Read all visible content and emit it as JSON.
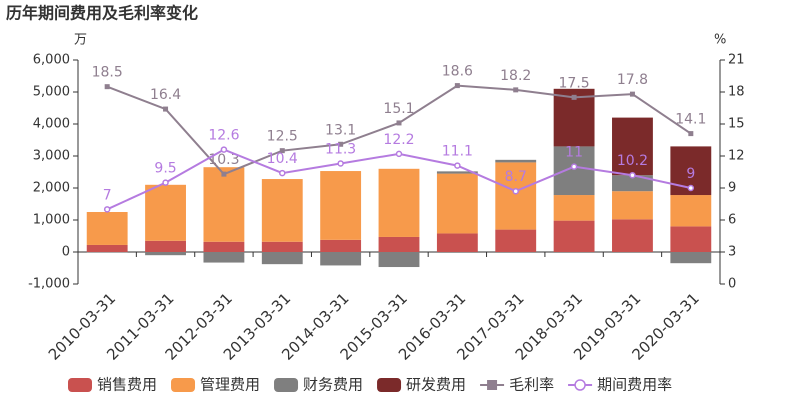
{
  "chart_data": {
    "type": "bar",
    "stacked": true,
    "title": "历年期间费用及毛利率变化",
    "y_label": "万",
    "y2_label": "%",
    "categories": [
      "2010-03-31",
      "2011-03-31",
      "2012-03-31",
      "2013-03-31",
      "2014-03-31",
      "2015-03-31",
      "2016-03-31",
      "2017-03-31",
      "2018-03-31",
      "2019-03-31",
      "2020-03-31"
    ],
    "ylim": [
      -1000,
      6000
    ],
    "yticks": [
      {
        "value": -1000,
        "label": "-1,000"
      },
      0,
      {
        "value": 1000,
        "label": "1,000"
      },
      {
        "value": 2000,
        "label": "2,000"
      },
      {
        "value": 3000,
        "label": "3,000"
      },
      {
        "value": 4000,
        "label": "4,000"
      },
      {
        "value": 5000,
        "label": "5,000"
      },
      {
        "value": 6000,
        "label": "6,000"
      }
    ],
    "y2lim": [
      0,
      21
    ],
    "y2ticks": [
      0,
      3,
      6,
      9,
      12,
      15,
      18,
      21
    ],
    "grid": false,
    "legend": "bottom",
    "series": [
      {
        "name": "销售费用",
        "color": "#c9514f",
        "values": [
          220,
          350,
          320,
          320,
          380,
          470,
          580,
          700,
          980,
          1020,
          800
        ]
      },
      {
        "name": "管理费用",
        "color": "#f79a4b",
        "values": [
          1030,
          1750,
          2330,
          1960,
          2150,
          2130,
          1870,
          2100,
          800,
          880,
          980
        ]
      },
      {
        "name": "财务费用",
        "color": "#7f7f7f",
        "values": [
          -20,
          -100,
          -330,
          -380,
          -420,
          -470,
          70,
          80,
          1520,
          500,
          -350
        ]
      },
      {
        "name": "研发费用",
        "color": "#7b2a2a",
        "values": [
          0,
          0,
          0,
          0,
          0,
          0,
          0,
          0,
          1800,
          1800,
          1520
        ]
      },
      {
        "name": "毛利率",
        "type": "line",
        "axis": "y2",
        "marker": "square",
        "color": "#8f7f8f",
        "values": [
          18.5,
          16.4,
          10.3,
          12.5,
          13.1,
          15.1,
          18.6,
          18.2,
          17.5,
          17.8,
          14.1
        ]
      },
      {
        "name": "期间费用率",
        "type": "line",
        "axis": "y2",
        "marker": "circle",
        "color": "#b57be0",
        "values": [
          7,
          9.5,
          12.6,
          10.4,
          11.3,
          12.2,
          11.1,
          8.7,
          11,
          10.2,
          9
        ]
      }
    ]
  }
}
